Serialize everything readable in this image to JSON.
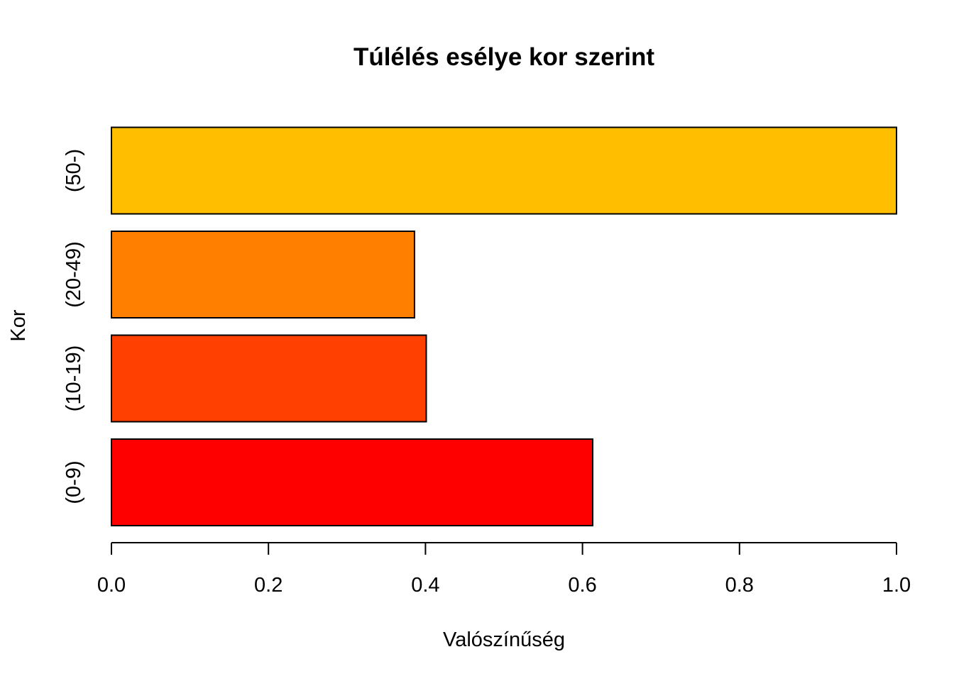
{
  "chart_data": {
    "type": "bar",
    "orientation": "horizontal",
    "title": "Túlélés esélye kor szerint",
    "xlabel": "Valószínűség",
    "ylabel": "Kor",
    "categories": [
      "(0-9)",
      "(10-19)",
      "(20-49)",
      "(50-)"
    ],
    "values": [
      0.613,
      0.401,
      0.386,
      1.0
    ],
    "colors": [
      "#FF0000",
      "#FF4000",
      "#FF8000",
      "#FFBF00"
    ],
    "xlim": [
      0,
      1
    ],
    "xticks": [
      0.0,
      0.2,
      0.4,
      0.6,
      0.8,
      1.0
    ],
    "xtick_labels": [
      "0.0",
      "0.2",
      "0.4",
      "0.6",
      "0.8",
      "1.0"
    ],
    "grid": false,
    "legend": "none",
    "bar_border_color": "#000000"
  }
}
